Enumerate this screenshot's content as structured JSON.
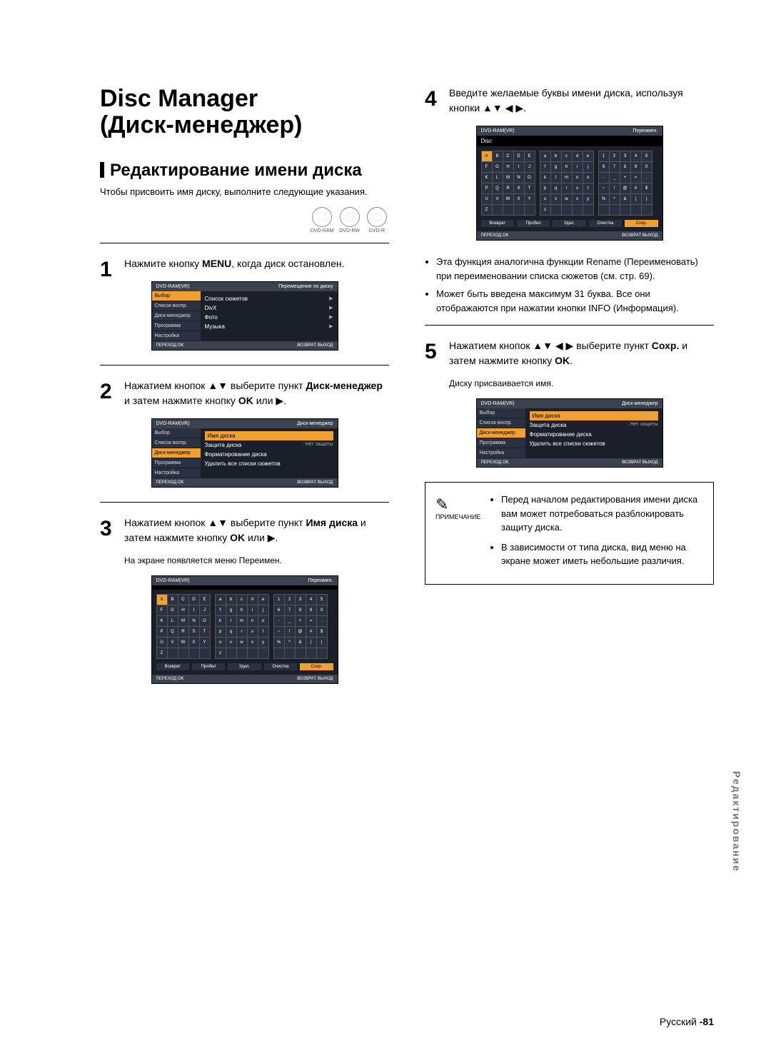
{
  "title_line1": "Disc Manager",
  "title_line2": "(Диск-менеджер)",
  "section_heading": "Редактирование имени диска",
  "intro": "Чтобы присвоить имя диску, выполните следующие указания.",
  "disc_types": [
    "DVD-RAM",
    "DVD-RW",
    "DVD-R"
  ],
  "steps": {
    "s1": {
      "num": "1",
      "text_pre": "Нажмите кнопку ",
      "bold": "MENU",
      "text_post": ", когда диск остановлен."
    },
    "s2": {
      "num": "2",
      "text_pre": "Нажатием кнопок ▲▼ выберите пункт ",
      "bold": "Диск-менеджер",
      "text_post": " и затем нажмите кнопку ",
      "bold2": "OK",
      "text_post2": " или ▶."
    },
    "s3": {
      "num": "3",
      "text_pre": "Нажатием кнопок ▲▼ выберите пункт ",
      "bold": "Имя диска",
      "text_post": " и затем нажмите кнопку ",
      "bold2": "OK",
      "text_post2": " или ▶.",
      "sub": "На экране появляется меню Переимен."
    },
    "s4": {
      "num": "4",
      "text": "Введите желаемые буквы имени диска, используя кнопки ▲▼ ◀ ▶.",
      "bullets": [
        "Эта функция аналогична функции Rename (Переименовать) при переименовании списка сюжетов (см. стр. 69).",
        "Может быть введена максимум 31 буква. Все они отображаются при нажатии кнопки INFO (Информация)."
      ],
      "bullet2_bold": "INFO"
    },
    "s5": {
      "num": "5",
      "text_pre": "Нажатием кнопок ▲▼ ◀ ▶ выберите пункт ",
      "bold": "Сохр.",
      "text_post": " и затем нажмите кнопку ",
      "bold2": "OK",
      "text_post2": ".",
      "sub": "Диску присваивается имя."
    }
  },
  "osd": {
    "device": "DVD-RAM(VR)",
    "screen1": {
      "title": "Перемещение по диску",
      "side": [
        "Выбор",
        "Список воспр.",
        "Диск-менеджер",
        "Программа",
        "Настройка"
      ],
      "side_selected": 0,
      "rows": [
        [
          "Список сюжетов",
          "▶"
        ],
        [
          "DivX",
          "▶"
        ],
        [
          "Фото",
          "▶"
        ],
        [
          "Музыка",
          "▶"
        ]
      ]
    },
    "screen2": {
      "title": "Диск-менеджер",
      "side": [
        "Выбор",
        "Список воспр.",
        "Диск-менеджер",
        "Программа",
        "Настройка"
      ],
      "side_selected": 2,
      "rows": [
        [
          "Имя диска",
          ":",
          "▶"
        ],
        [
          "Защита диска",
          ": Нет защиты",
          "▶"
        ],
        [
          "Форматирование диска",
          "",
          "▶"
        ],
        [
          "Удалить все списки сюжетов",
          "",
          "▶"
        ]
      ],
      "row_selected": 0
    },
    "screen5": {
      "title": "Диск-менеджер",
      "side": [
        "Выбор",
        "Список воспр.",
        "Диск-менеджер",
        "Программа",
        "Настройка"
      ],
      "side_selected": 2,
      "rows": [
        [
          "Имя диска",
          ": Disc",
          "▶"
        ],
        [
          "Защита диска",
          ": Нет защиты",
          "▶"
        ],
        [
          "Форматирование диска",
          "",
          "▶"
        ],
        [
          "Удалить все списки сюжетов",
          "",
          "▶"
        ]
      ],
      "row_selected": 0
    },
    "footer_left": "ПЕРЕХОД   OK",
    "footer_right": "ВОЗВРАТ   ВЫХОД",
    "keyboard": {
      "title": "Переимен.",
      "entry3": "",
      "entry4": "Disc",
      "upper": [
        [
          "A",
          "B",
          "C",
          "D",
          "E"
        ],
        [
          "F",
          "G",
          "H",
          "I",
          "J"
        ],
        [
          "K",
          "L",
          "M",
          "N",
          "O"
        ],
        [
          "P",
          "Q",
          "R",
          "S",
          "T"
        ],
        [
          "U",
          "V",
          "W",
          "X",
          "Y"
        ],
        [
          "Z",
          "",
          "",
          "",
          ""
        ]
      ],
      "lower": [
        [
          "a",
          "b",
          "c",
          "d",
          "e"
        ],
        [
          "f",
          "g",
          "h",
          "i",
          "j"
        ],
        [
          "k",
          "l",
          "m",
          "n",
          "o"
        ],
        [
          "p",
          "q",
          "r",
          "s",
          "t"
        ],
        [
          "u",
          "v",
          "w",
          "x",
          "y"
        ],
        [
          "z",
          "",
          "",
          "",
          ""
        ]
      ],
      "sym": [
        [
          "1",
          "2",
          "3",
          "4",
          "5"
        ],
        [
          "6",
          "7",
          "8",
          "9",
          "0"
        ],
        [
          "-",
          "_",
          "+",
          "=",
          "."
        ],
        [
          "~",
          "!",
          "@",
          "#",
          "$"
        ],
        [
          "%",
          "^",
          "&",
          "(",
          ")"
        ],
        [
          "",
          "",
          "",
          "",
          ""
        ]
      ],
      "btns": [
        "Возврат",
        "Пробел",
        "Удал.",
        "Очистка",
        "Сохр."
      ]
    }
  },
  "note": {
    "label": "ПРИМЕЧАНИЕ",
    "items": [
      "Перед началом редактирования имени диска вам может потребоваться разблокировать защиту диска.",
      "В зависимости от типа диска, вид меню на экране может иметь небольшие различия."
    ]
  },
  "side_tab": "Редактирование",
  "footer_lang": "Русский",
  "footer_page": "-81"
}
